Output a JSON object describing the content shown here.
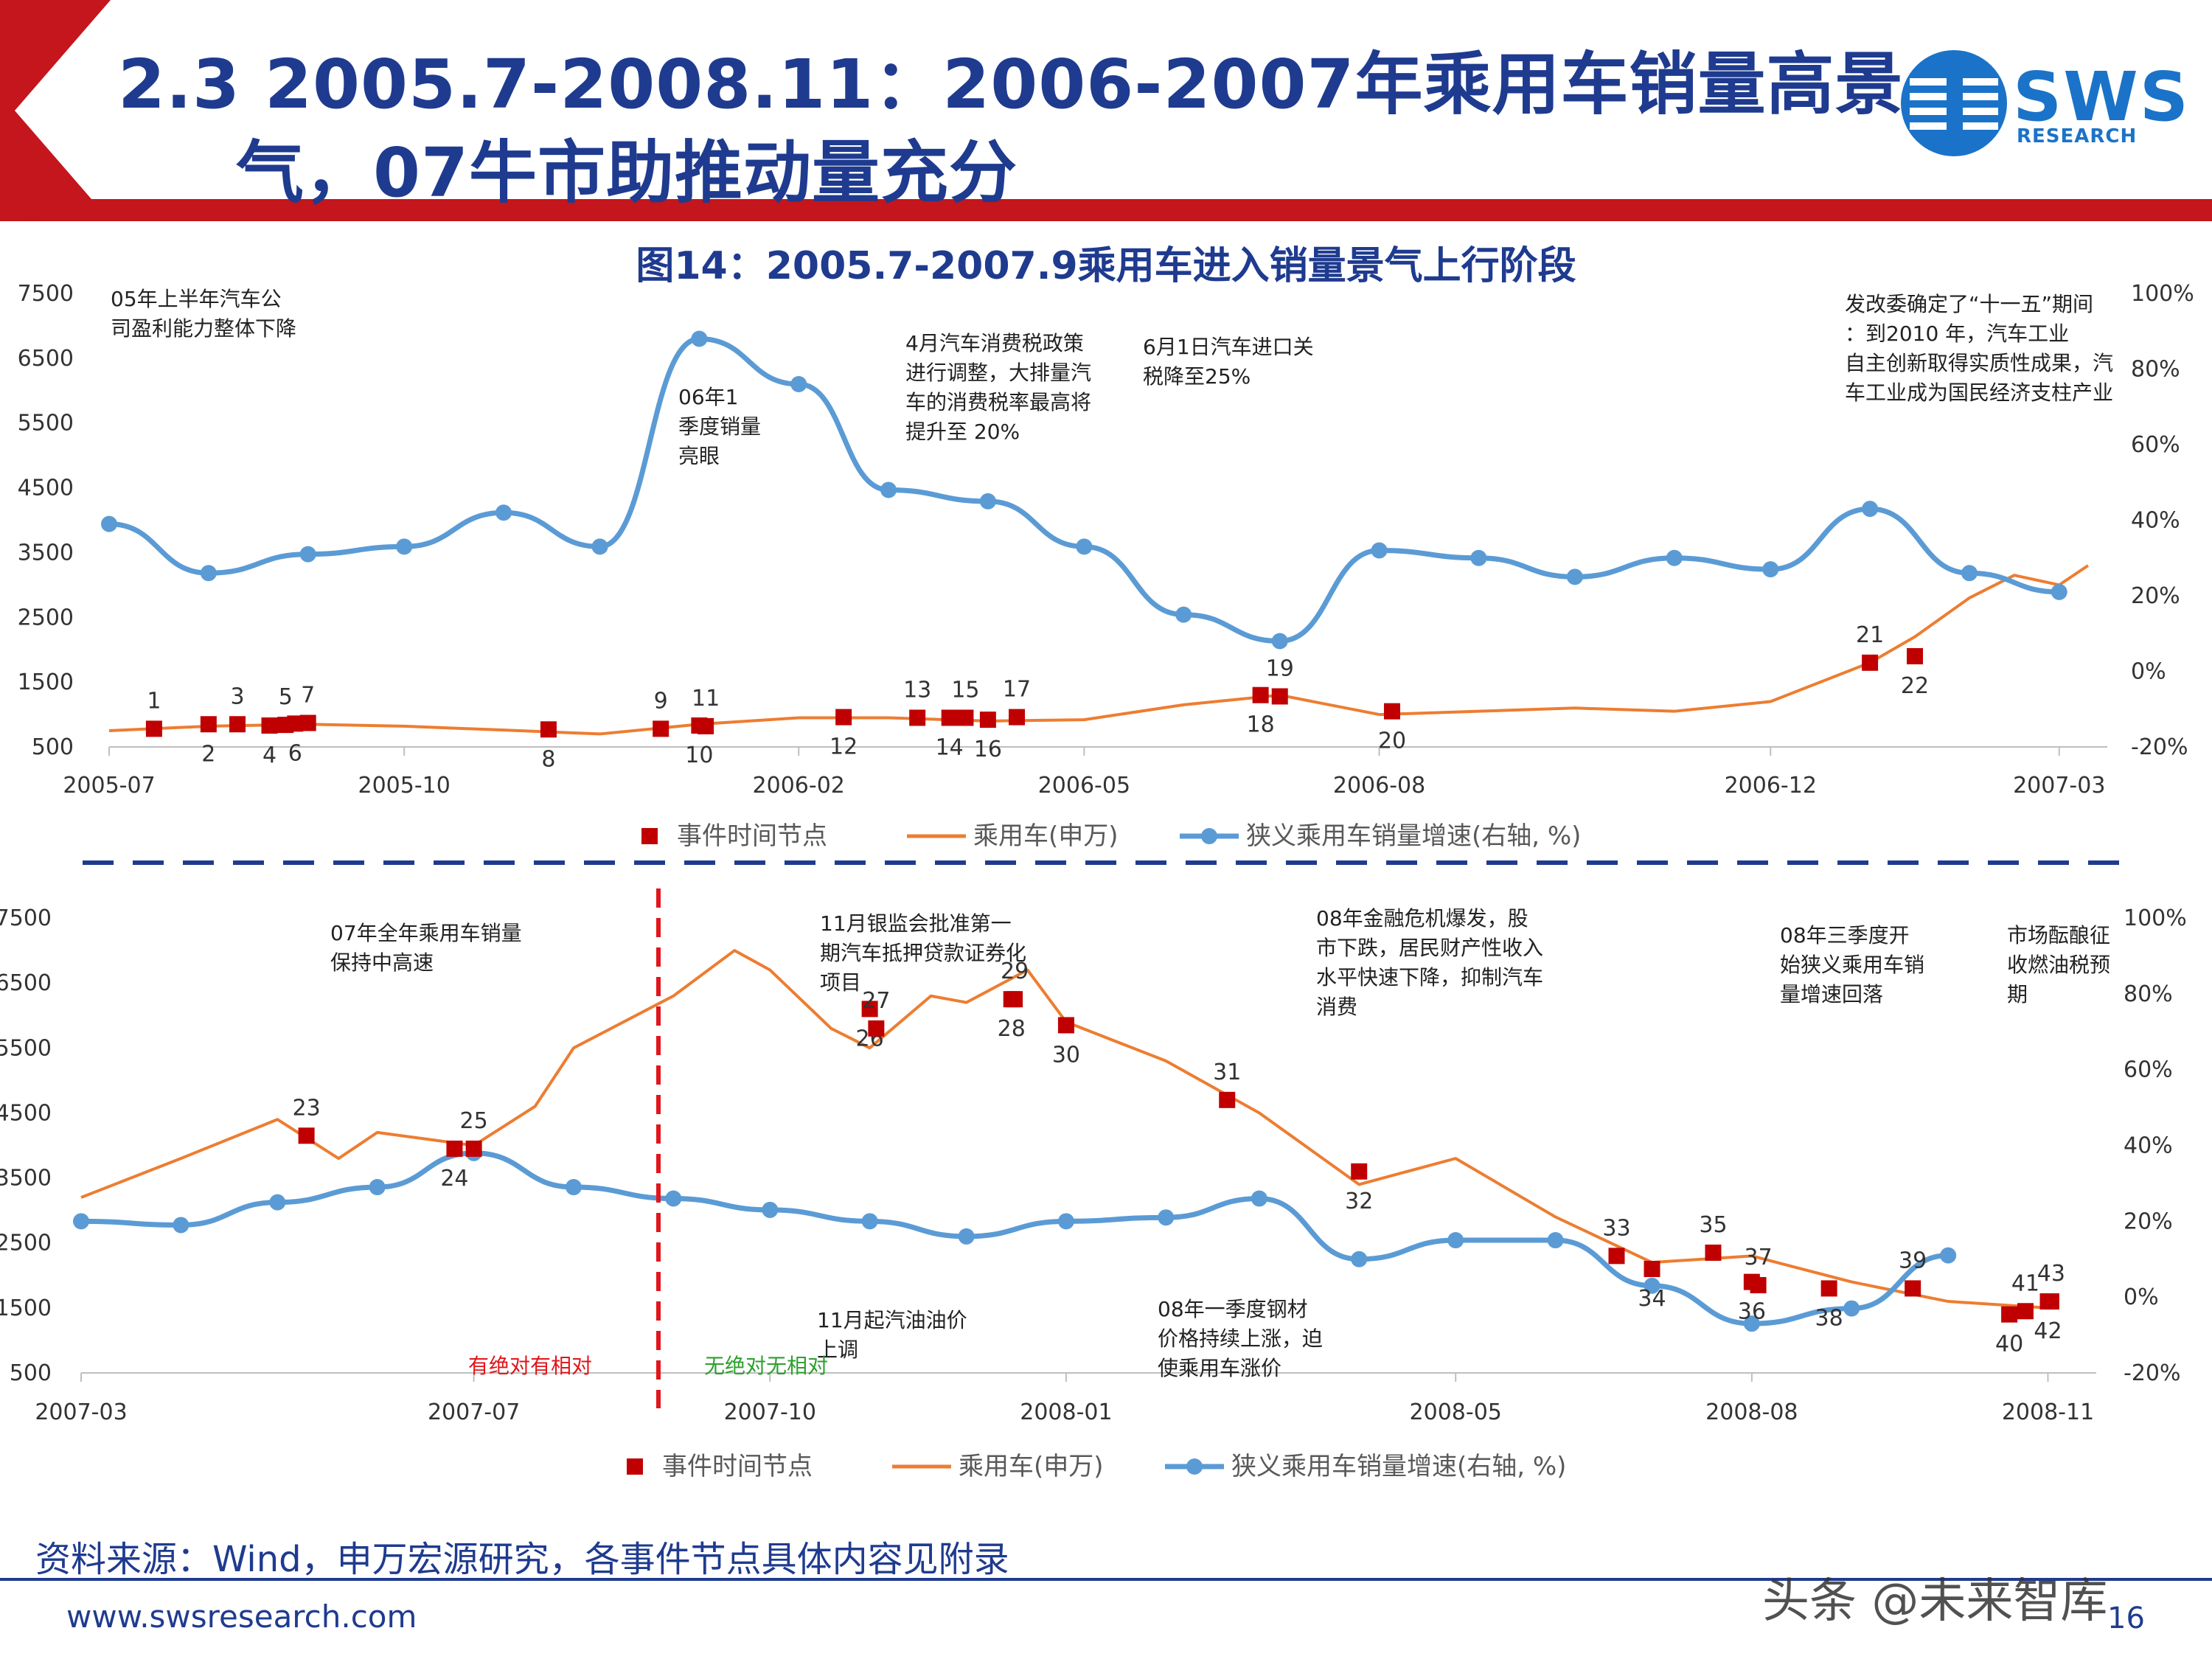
{
  "slide": {
    "title_line1": "2.3 2005.7-2008.11：2006-2007年乘用车销量高景",
    "title_line2": "气，07牛市助推动量充分",
    "logo_text": "SWS",
    "logo_sub": "RESEARCH",
    "figure_title": "图14：2005.7-2007.9乘用车进入销量景气上行阶段",
    "source": "资料来源：Wind，申万宏源研究，各事件节点具体内容见附录",
    "website": "www.swsresearch.com",
    "watermark": "头条 @未来智库",
    "page_number": "16",
    "colors": {
      "title": "#1f3b8f",
      "accent_red": "#c4161c",
      "orange_line": "#ed7d31",
      "blue_line": "#5b9bd5",
      "marker": "#c00000"
    }
  },
  "chart_data": [
    {
      "type": "line",
      "title": "图14：2005.7-2007.9乘用车进入销量景气上行阶段",
      "xlim": [
        "2005-07",
        "2007-03"
      ],
      "x_ticks": [
        "2005-07",
        "2005-10",
        "2006-02",
        "2006-05",
        "2006-08",
        "2006-12",
        "2007-03"
      ],
      "y_left_ticks": [
        "7500",
        "6500",
        "5500",
        "4500",
        "3500",
        "2500",
        "1500",
        "500"
      ],
      "ylim_left": [
        500,
        7500
      ],
      "y_right_ticks": [
        "100%",
        "80%",
        "60%",
        "40%",
        "20%",
        "0%",
        "-20%"
      ],
      "ylim_right": [
        -20,
        100
      ],
      "legend": [
        "事件时间节点",
        "乘用车(申万)",
        "狭义乘用车销量增速(右轴, %)"
      ],
      "legend_position": "bottom",
      "series": [
        {
          "name": "乘用车(申万)",
          "axis": "left",
          "x": [
            "2005-07-01",
            "2005-08-01",
            "2005-09-01",
            "2005-10-01",
            "2005-11-01",
            "2005-12-01",
            "2006-01-01",
            "2006-02-01",
            "2006-03-01",
            "2006-04-01",
            "2006-05-01",
            "2006-06-01",
            "2006-07-01",
            "2006-08-01",
            "2006-09-01",
            "2006-10-01",
            "2006-11-01",
            "2006-12-01",
            "2007-01-01",
            "2007-01-15",
            "2007-02-01",
            "2007-02-15",
            "2007-03-01",
            "2007-03-10"
          ],
          "values": [
            750,
            820,
            850,
            820,
            760,
            700,
            850,
            950,
            950,
            900,
            920,
            1150,
            1300,
            1000,
            1050,
            1100,
            1050,
            1200,
            1800,
            2200,
            2800,
            3150,
            3000,
            3300
          ]
        },
        {
          "name": "狭义乘用车销量增速(右轴, %)",
          "axis": "right",
          "x": [
            "2005-07-01",
            "2005-08-01",
            "2005-09-01",
            "2005-10-01",
            "2005-11-01",
            "2005-12-01",
            "2006-01-01",
            "2006-02-01",
            "2006-03-01",
            "2006-04-01",
            "2006-05-01",
            "2006-06-01",
            "2006-07-01",
            "2006-08-01",
            "2006-09-01",
            "2006-10-01",
            "2006-11-01",
            "2006-12-01",
            "2007-01-01",
            "2007-02-01",
            "2007-03-01"
          ],
          "values": [
            39,
            26,
            31,
            33,
            42,
            33,
            88,
            76,
            48,
            45,
            33,
            15,
            8,
            32,
            30,
            25,
            30,
            27,
            43,
            26,
            21
          ]
        }
      ],
      "events": [
        {
          "label": "1",
          "x": "2005-07-15",
          "y": 780
        },
        {
          "label": "2",
          "x": "2005-08-01",
          "y": 850
        },
        {
          "label": "3",
          "x": "2005-08-10",
          "y": 850
        },
        {
          "label": "4",
          "x": "2005-08-20",
          "y": 830
        },
        {
          "label": "5",
          "x": "2005-08-25",
          "y": 840
        },
        {
          "label": "6",
          "x": "2005-08-28",
          "y": 860
        },
        {
          "label": "7",
          "x": "2005-09-01",
          "y": 870
        },
        {
          "label": "8",
          "x": "2005-11-15",
          "y": 770
        },
        {
          "label": "9",
          "x": "2005-12-20",
          "y": 780
        },
        {
          "label": "10",
          "x": "2006-01-01",
          "y": 830
        },
        {
          "label": "11",
          "x": "2006-01-03",
          "y": 820
        },
        {
          "label": "12",
          "x": "2006-02-15",
          "y": 960
        },
        {
          "label": "13",
          "x": "2006-03-10",
          "y": 950
        },
        {
          "label": "14",
          "x": "2006-03-20",
          "y": 950
        },
        {
          "label": "15",
          "x": "2006-03-25",
          "y": 950
        },
        {
          "label": "16",
          "x": "2006-04-01",
          "y": 920
        },
        {
          "label": "17",
          "x": "2006-04-10",
          "y": 960
        },
        {
          "label": "18",
          "x": "2006-06-25",
          "y": 1300
        },
        {
          "label": "19",
          "x": "2006-07-01",
          "y": 1280
        },
        {
          "label": "20",
          "x": "2006-08-05",
          "y": 1050
        },
        {
          "label": "21",
          "x": "2007-01-01",
          "y": 1800
        },
        {
          "label": "22",
          "x": "2007-01-15",
          "y": 1900
        }
      ],
      "annotations": [
        "05年上半年汽车公司盈利能力整体下降",
        "06年1季度销量亮眼",
        "4月汽车消费税政策进行调整，大排量汽车的消费税率最高将提升至 20%",
        "6月1日汽车进口关税降至25%",
        "发改委确定了“十一五”期间：到2010 年，汽车工业自主创新取得实质性成果，汽车工业成为国民经济支柱产业"
      ]
    },
    {
      "type": "line",
      "xlim": [
        "2007-03",
        "2008-11"
      ],
      "x_ticks": [
        "2007-03",
        "2007-07",
        "2007-10",
        "2008-01",
        "2008-05",
        "2008-08",
        "2008-11"
      ],
      "y_left_ticks": [
        "7500",
        "6500",
        "5500",
        "4500",
        "3500",
        "2500",
        "1500",
        "500"
      ],
      "ylim_left": [
        500,
        7500
      ],
      "y_right_ticks": [
        "100%",
        "80%",
        "60%",
        "40%",
        "20%",
        "0%",
        "-20%"
      ],
      "ylim_right": [
        -20,
        100
      ],
      "legend": [
        "事件时间节点",
        "乘用车(申万)",
        "狭义乘用车销量增速(右轴, %)"
      ],
      "legend_position": "bottom",
      "series": [
        {
          "name": "乘用车(申万)",
          "axis": "left",
          "x": [
            "2007-03-01",
            "2007-04-01",
            "2007-05-01",
            "2007-05-20",
            "2007-06-01",
            "2007-07-01",
            "2007-07-20",
            "2007-08-01",
            "2007-09-01",
            "2007-09-20",
            "2007-10-01",
            "2007-10-20",
            "2007-11-01",
            "2007-11-20",
            "2007-12-01",
            "2007-12-20",
            "2008-01-01",
            "2008-02-01",
            "2008-03-01",
            "2008-04-01",
            "2008-05-01",
            "2008-06-01",
            "2008-07-01",
            "2008-08-01",
            "2008-09-01",
            "2008-10-01",
            "2008-11-01"
          ],
          "values": [
            3200,
            3800,
            4400,
            3800,
            4200,
            4000,
            4600,
            5500,
            6300,
            7000,
            6700,
            5800,
            5500,
            6300,
            6200,
            6700,
            5900,
            5300,
            4500,
            3400,
            3800,
            2900,
            2200,
            2300,
            1900,
            1600,
            1500
          ]
        },
        {
          "name": "狭义乘用车销量增速(右轴, %)",
          "axis": "right",
          "x": [
            "2007-03-01",
            "2007-04-01",
            "2007-05-01",
            "2007-06-01",
            "2007-07-01",
            "2007-08-01",
            "2007-09-01",
            "2007-10-01",
            "2007-11-01",
            "2007-12-01",
            "2008-01-01",
            "2008-02-01",
            "2008-03-01",
            "2008-04-01",
            "2008-05-01",
            "2008-06-01",
            "2008-07-01",
            "2008-08-01",
            "2008-09-01",
            "2008-10-01"
          ],
          "values": [
            20,
            19,
            25,
            29,
            38,
            29,
            26,
            23,
            20,
            16,
            20,
            21,
            26,
            10,
            15,
            15,
            3,
            -7,
            -3,
            11
          ]
        }
      ],
      "events": [
        {
          "label": "23",
          "x": "2007-05-10",
          "y": 4150
        },
        {
          "label": "24",
          "x": "2007-06-25",
          "y": 3950
        },
        {
          "label": "25",
          "x": "2007-07-01",
          "y": 3950
        },
        {
          "label": "26",
          "x": "2007-11-01",
          "y": 6100
        },
        {
          "label": "27",
          "x": "2007-11-03",
          "y": 5800
        },
        {
          "label": "28",
          "x": "2007-12-15",
          "y": 6250
        },
        {
          "label": "29",
          "x": "2007-12-16",
          "y": 6250
        },
        {
          "label": "30",
          "x": "2008-01-01",
          "y": 5850
        },
        {
          "label": "31",
          "x": "2008-02-20",
          "y": 4700
        },
        {
          "label": "32",
          "x": "2008-04-01",
          "y": 3600
        },
        {
          "label": "33",
          "x": "2008-06-20",
          "y": 2300
        },
        {
          "label": "34",
          "x": "2008-07-01",
          "y": 2100
        },
        {
          "label": "35",
          "x": "2008-07-20",
          "y": 2350
        },
        {
          "label": "36",
          "x": "2008-08-01",
          "y": 1900
        },
        {
          "label": "37",
          "x": "2008-08-03",
          "y": 1850
        },
        {
          "label": "38",
          "x": "2008-08-25",
          "y": 1800
        },
        {
          "label": "39",
          "x": "2008-09-20",
          "y": 1800
        },
        {
          "label": "40",
          "x": "2008-10-20",
          "y": 1400
        },
        {
          "label": "41",
          "x": "2008-10-25",
          "y": 1450
        },
        {
          "label": "42",
          "x": "2008-11-01",
          "y": 1600
        },
        {
          "label": "43",
          "x": "2008-11-02",
          "y": 1600
        }
      ],
      "annotations": [
        "07年全年乘用车销量保持中高速",
        "11月银监会批准第一期汽车抵押贷款证券化项目",
        "08年金融危机爆发，股市下跌，居民财产性收入水平快速下降，抑制汽车消费",
        "08年三季度开始狭义乘用车销量增速回落",
        "市场酝酿征收燃油税预期",
        "11月起汽油油价上调",
        "08年一季度钢材价格持续上涨，迫使乘用车涨价"
      ],
      "regime_labels": [
        "有绝对有相对",
        "无绝对无相对"
      ]
    }
  ]
}
